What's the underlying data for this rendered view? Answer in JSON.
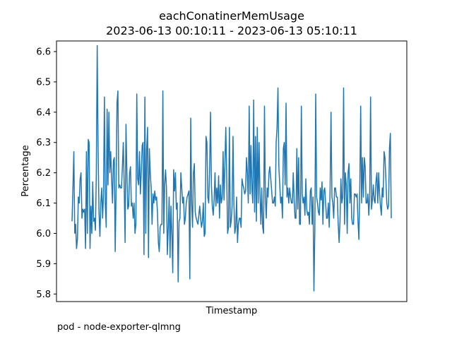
{
  "title": "eachConatinerMemUsage",
  "subtitle": "2023-06-13 00:10:11 - 2023-06-13 05:10:11",
  "footer": "pod - node-exporter-qlmng",
  "chart_data": {
    "type": "line",
    "title": "eachConatinerMemUsage",
    "subtitle": "2023-06-13 00:10:11 - 2023-06-13 05:10:11",
    "xlabel": "Timestamp",
    "ylabel": "Percentage",
    "ylim": [
      5.775,
      6.635
    ],
    "yticks": [
      5.8,
      5.9,
      6.0,
      6.1,
      6.2,
      6.3,
      6.4,
      6.5,
      6.6
    ],
    "ytick_labels": [
      "5.8",
      "5.9",
      "6.0",
      "6.1",
      "6.2",
      "6.3",
      "6.4",
      "6.5",
      "6.6"
    ],
    "grid": false,
    "line_color": "#1f77b4",
    "series": [
      {
        "values": [
          6.04,
          6.15,
          6.27,
          6.0,
          6.03,
          5.95,
          5.98,
          6.12,
          6.1,
          6.18,
          6.2,
          6.05,
          6.08,
          6.07,
          6.08,
          5.95,
          6.27,
          6.0,
          6.31,
          6.3,
          5.95,
          6.09,
          6.0,
          6.17,
          6.04,
          6.05,
          6.01,
          6.2,
          6.62,
          6.27,
          6.07,
          5.99,
          6.1,
          6.15,
          6.05,
          6.13,
          6.45,
          6.1,
          6.02,
          6.41,
          6.16,
          6.4,
          6.2,
          6.27,
          6.18,
          6.1,
          6.24,
          6.25,
          5.94,
          6.15,
          6.43,
          6.47,
          6.15,
          6.16,
          6.15,
          6.15,
          6.22,
          6.3,
          6.16,
          5.97,
          6.36,
          6.2,
          6.08,
          6.09,
          6.2,
          6.22,
          6.09,
          6.1,
          6.05,
          6.1,
          6.0,
          6.03,
          6.46,
          6.18,
          6.16,
          6.27,
          6.13,
          6.2,
          6.29,
          6.3,
          5.93,
          6.45,
          6.0,
          6.28,
          6.35,
          5.92,
          6.28,
          6.2,
          6.15,
          6.03,
          6.13,
          6.1,
          6.14,
          6.11,
          6.12,
          6.07,
          5.97,
          5.94,
          6.02,
          6.03,
          6.03,
          6.47,
          6.0,
          6.16,
          6.21,
          6.15,
          5.93,
          6.02,
          6.12,
          5.92,
          6.09,
          6.0,
          5.87,
          6.21,
          6.14,
          6.2,
          6.08,
          6.1,
          5.84,
          6.04,
          6.05,
          6.2,
          6.15,
          6.1,
          6.12,
          6.03,
          6.05,
          6.1,
          6.12,
          6.13,
          6.14,
          5.85,
          6.38,
          6.1,
          6.02,
          6.2,
          6.23,
          6.07,
          6.05,
          6.04,
          6.03,
          6.06,
          6.09,
          6.05,
          6.02,
          6.04,
          6.1,
          5.99,
          6.0,
          6.32,
          6.3,
          6.12,
          6.1,
          6.21,
          6.4,
          6.16,
          6.09,
          6.06,
          6.11,
          6.2,
          6.09,
          6.15,
          6.1,
          6.19,
          6.05,
          6.16,
          6.1,
          6.12,
          6.27,
          6.11,
          6.23,
          6.35,
          6.19,
          6.0,
          6.02,
          6.35,
          6.02,
          6.04,
          6.09,
          6.32,
          6.1,
          6.0,
          6.02,
          6.12,
          5.97,
          6.03,
          6.05,
          6.05,
          6.02,
          6.18,
          6.16,
          6.15,
          6.13,
          6.14,
          6.25,
          6.2,
          6.1,
          6.42,
          6.13,
          6.29,
          6.15,
          6.1,
          6.44,
          6.07,
          6.32,
          6.04,
          6.35,
          6.1,
          6.3,
          6.13,
          6.03,
          6.15,
          6.02,
          6.0,
          6.42,
          6.12,
          6.05,
          6.15,
          6.12,
          6.2,
          6.22,
          6.18,
          6.14,
          6.1,
          6.1,
          6.12,
          6.09,
          6.3,
          6.35,
          6.48,
          6.22,
          6.16,
          6.1,
          6.12,
          6.05,
          6.28,
          6.3,
          6.16,
          6.43,
          6.12,
          6.15,
          6.1,
          6.15,
          6.12,
          6.1,
          6.1,
          6.2,
          6.11,
          6.05,
          6.05,
          6.28,
          6.08,
          6.25,
          6.03,
          6.03,
          6.42,
          6.13,
          6.1,
          6.12,
          6.06,
          6.18,
          6.08,
          6.06,
          6.07,
          6.03,
          6.14,
          6.15,
          6.03,
          6.12,
          5.81,
          6.01,
          6.46,
          6.12,
          6.1,
          6.07,
          6.06,
          6.15,
          6.11,
          6.17,
          6.03,
          6.14,
          6.15,
          6.1,
          6.05,
          6.05,
          6.1,
          6.02,
          6.15,
          6.4,
          6.12,
          6.1,
          6.05,
          6.15,
          6.15,
          6.12,
          6.12,
          6.03,
          5.97,
          6.04,
          6.18,
          6.1,
          6.12,
          6.48,
          6.03,
          6.2,
          6.16,
          6.0,
          6.2,
          6.23,
          6.1,
          6.18,
          6.05,
          6.03,
          6.03,
          6.13,
          6.13,
          6.12,
          6.13,
          6.04,
          5.98,
          6.15,
          6.42,
          6.1,
          6.25,
          6.12,
          6.25,
          6.22,
          6.1,
          6.1,
          6.13,
          6.06,
          6.12,
          6.45,
          6.08,
          6.11,
          6.16,
          6.11,
          6.1,
          6.17,
          6.2,
          6.1,
          6.2,
          6.13,
          6.09,
          6.06,
          6.15,
          6.12,
          6.27,
          6.25,
          6.18,
          6.1,
          6.08,
          6.09,
          6.28,
          6.33,
          6.05
        ]
      }
    ]
  }
}
